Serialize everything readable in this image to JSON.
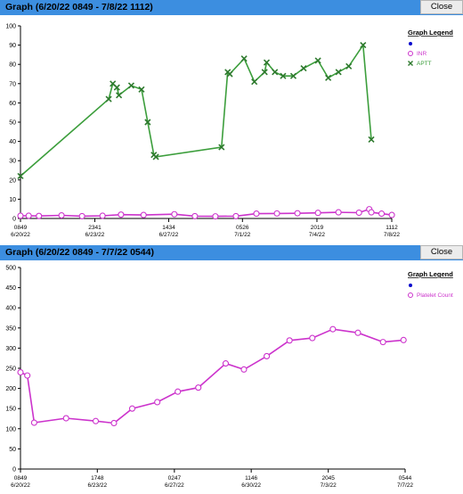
{
  "ui": {
    "close_label": "Close"
  },
  "chart_data": [
    {
      "type": "line",
      "window_title": "Graph  (6/20/22 0849  -  7/8/22 1112)",
      "legend_title": "Graph Legend",
      "ylim": [
        0,
        100
      ],
      "yticks": [
        0,
        10,
        20,
        30,
        40,
        50,
        60,
        70,
        80,
        90,
        100
      ],
      "xlim": [
        0,
        18.097
      ],
      "xticks": [
        {
          "x": 0,
          "time": "0849",
          "date": "6/20/22"
        },
        {
          "x": 3.625,
          "time": "2341",
          "date": "6/23/22"
        },
        {
          "x": 7.225,
          "time": "1434",
          "date": "6/27/22"
        },
        {
          "x": 10.819,
          "time": "0526",
          "date": "7/1/22"
        },
        {
          "x": 14.45,
          "time": "2019",
          "date": "7/4/22"
        },
        {
          "x": 18.097,
          "time": "1112",
          "date": "7/8/22"
        }
      ],
      "grid": false,
      "legend_position": "right",
      "series": [
        {
          "name": "",
          "color": "#0000cc",
          "marker": "dot",
          "points": []
        },
        {
          "name": "INR",
          "color": "#cc33cc",
          "marker": "circle",
          "points": [
            [
              0,
              1.4
            ],
            [
              0.4,
              1.4
            ],
            [
              0.9,
              1.3
            ],
            [
              2.0,
              1.6
            ],
            [
              3.0,
              1.2
            ],
            [
              4.0,
              1.4
            ],
            [
              4.9,
              2.0
            ],
            [
              6.0,
              1.8
            ],
            [
              7.5,
              2.2
            ],
            [
              8.5,
              1.2
            ],
            [
              9.5,
              1.1
            ],
            [
              10.5,
              1.2
            ],
            [
              11.5,
              2.5
            ],
            [
              12.5,
              2.6
            ],
            [
              13.5,
              2.7
            ],
            [
              14.5,
              2.9
            ],
            [
              15.5,
              3.2
            ],
            [
              16.5,
              3.0
            ],
            [
              17.0,
              4.8
            ],
            [
              17.1,
              3.2
            ],
            [
              17.6,
              2.5
            ],
            [
              18.1,
              1.8
            ]
          ]
        },
        {
          "name": "APTT",
          "color": "#3c9e3c",
          "marker": "x",
          "points": [
            [
              0,
              22
            ],
            [
              4.3,
              62
            ],
            [
              4.5,
              70
            ],
            [
              4.7,
              68
            ],
            [
              4.8,
              64
            ],
            [
              5.4,
              69
            ],
            [
              5.9,
              67
            ],
            [
              6.2,
              50
            ],
            [
              6.5,
              33
            ],
            [
              6.6,
              32
            ],
            [
              9.8,
              37
            ],
            [
              10.1,
              76
            ],
            [
              10.2,
              75
            ],
            [
              10.9,
              83
            ],
            [
              11.4,
              71
            ],
            [
              11.9,
              76
            ],
            [
              12.0,
              81
            ],
            [
              12.4,
              76
            ],
            [
              12.8,
              74
            ],
            [
              13.3,
              74
            ],
            [
              13.8,
              78
            ],
            [
              14.5,
              82
            ],
            [
              15.0,
              73
            ],
            [
              15.5,
              76
            ],
            [
              16.0,
              79
            ],
            [
              16.7,
              90
            ],
            [
              17.1,
              41
            ]
          ]
        }
      ]
    },
    {
      "type": "line",
      "window_title": "Graph  (6/20/22 0849  -  7/7/22 0544)",
      "legend_title": "Graph Legend",
      "ylim": [
        0,
        500
      ],
      "yticks": [
        0,
        50,
        100,
        150,
        200,
        250,
        300,
        350,
        400,
        450,
        500
      ],
      "xlim": [
        0,
        16.87
      ],
      "xticks": [
        {
          "x": 0,
          "time": "0849",
          "date": "6/20/22"
        },
        {
          "x": 3.37,
          "time": "1748",
          "date": "6/23/22"
        },
        {
          "x": 6.75,
          "time": "0247",
          "date": "6/27/22"
        },
        {
          "x": 10.12,
          "time": "1146",
          "date": "6/30/22"
        },
        {
          "x": 13.5,
          "time": "2045",
          "date": "7/3/22"
        },
        {
          "x": 16.87,
          "time": "0544",
          "date": "7/7/22"
        }
      ],
      "grid": false,
      "legend_position": "right",
      "series": [
        {
          "name": "",
          "color": "#0000cc",
          "marker": "dot",
          "points": []
        },
        {
          "name": "Platelet Count",
          "color": "#cc33cc",
          "marker": "circle",
          "points": [
            [
              0,
              240
            ],
            [
              0.3,
              232
            ],
            [
              0.6,
              115
            ],
            [
              2.0,
              126
            ],
            [
              3.3,
              119
            ],
            [
              4.1,
              114
            ],
            [
              4.9,
              150
            ],
            [
              6.0,
              166
            ],
            [
              6.9,
              192
            ],
            [
              7.8,
              202
            ],
            [
              9.0,
              262
            ],
            [
              9.8,
              247
            ],
            [
              10.8,
              280
            ],
            [
              11.8,
              319
            ],
            [
              12.8,
              325
            ],
            [
              13.7,
              347
            ],
            [
              14.8,
              338
            ],
            [
              15.9,
              315
            ],
            [
              16.8,
              320
            ]
          ]
        }
      ]
    }
  ]
}
